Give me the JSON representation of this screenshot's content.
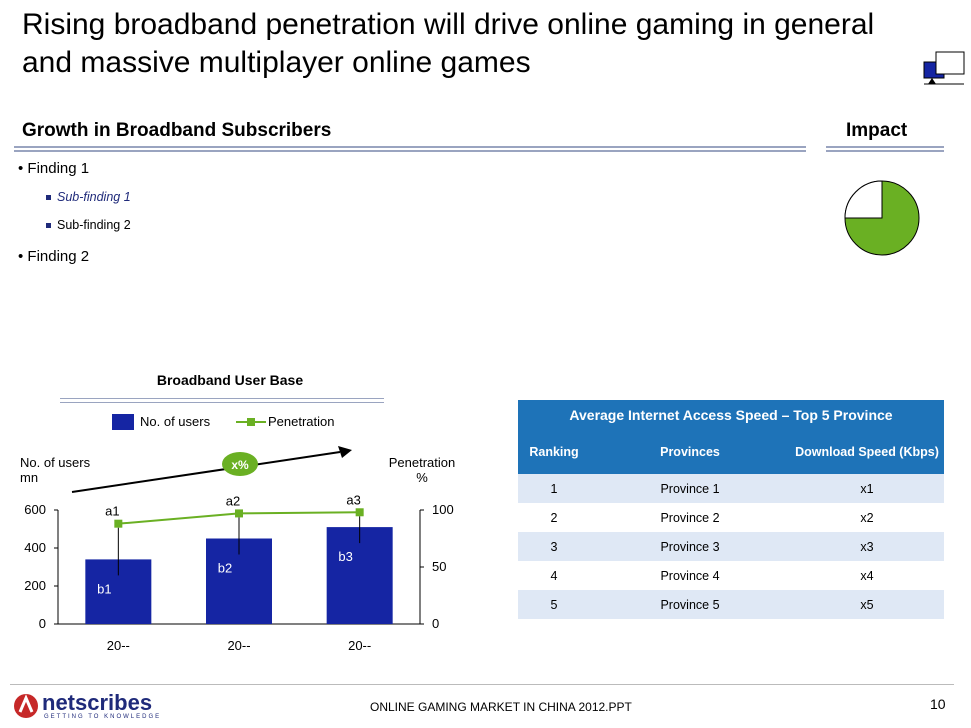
{
  "title": "Rising broadband penetration will drive online gaming in general and massive multiplayer online games",
  "growth_heading": "Growth in Broadband Subscribers",
  "impact_heading": "Impact",
  "findings": {
    "f1": "Finding 1",
    "sf1": "Sub-finding 1",
    "sf2": "Sub-finding 2",
    "f2": "Finding 2"
  },
  "chart_data": {
    "type": "bar",
    "title": "Broadband User Base",
    "categories": [
      "20--",
      "20--",
      "20--"
    ],
    "series": [
      {
        "name": "No. of users",
        "values": [
          340,
          450,
          510
        ],
        "labels": [
          "b1",
          "b2",
          "b3"
        ],
        "axis": "left"
      },
      {
        "name": "Penetration",
        "values": [
          88,
          97,
          98
        ],
        "labels": [
          "a1",
          "a2",
          "a3"
        ],
        "axis": "right",
        "type": "line"
      }
    ],
    "ylabel_left": "No. of users mn",
    "ylabel_right": "Penetration %",
    "ylim_left": [
      0,
      600
    ],
    "ylim_right": [
      0,
      100
    ],
    "yticks_left": [
      "600",
      "400",
      "200",
      "0"
    ],
    "yticks_right": [
      "100",
      "50",
      "0"
    ],
    "growth_label": "x%",
    "colors": {
      "bar": "#1525a3",
      "line": "#6ab023"
    }
  },
  "table": {
    "title": "Average Internet Access Speed – Top 5 Province",
    "headers": [
      "Ranking",
      "Provinces",
      "Download Speed (Kbps)"
    ],
    "rows": [
      [
        "1",
        "Province 1",
        "x1"
      ],
      [
        "2",
        "Province 2",
        "x2"
      ],
      [
        "3",
        "Province 3",
        "x3"
      ],
      [
        "4",
        "Province 4",
        "x4"
      ],
      [
        "5",
        "Province 5",
        "x5"
      ]
    ]
  },
  "footer": {
    "logo": "netscribes",
    "logo_tagline": "GETTING TO KNOWLEDGE",
    "text": "ONLINE GAMING MARKET IN CHINA 2012.PPT",
    "page": "10"
  },
  "colors": {
    "accent": "#1e73b8",
    "pie": "#6ab023",
    "navy": "#1f2a7a"
  }
}
